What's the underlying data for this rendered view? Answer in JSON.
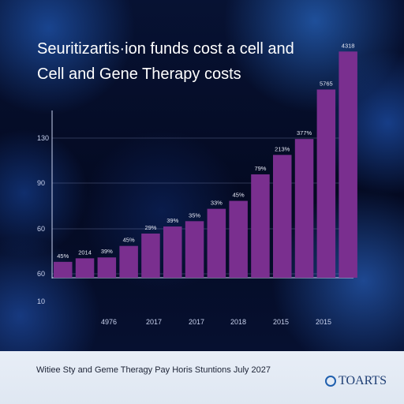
{
  "chart_data": {
    "type": "bar",
    "title_lines": [
      "Seuritizartis·ion funds cost a cell and",
      "Cell and Gene Therapy costs"
    ],
    "y_tick_labels": [
      "130",
      "90",
      "60",
      "60",
      "10"
    ],
    "x_tick_labels": [
      "4976",
      "2017",
      "2017",
      "2018",
      "2015",
      "2015"
    ],
    "values": [
      18,
      22,
      23,
      36,
      50,
      58,
      64,
      78,
      87,
      117,
      139,
      157,
      213,
      256
    ],
    "data_labels": [
      "45%",
      "2014",
      "39%",
      "45%",
      "29%",
      "39%",
      "35%",
      "33%",
      "45%",
      "79%",
      "213%",
      "377%",
      "5765",
      "4318"
    ],
    "bar_color": "#7a2f8f",
    "grid": true,
    "legend": "none"
  },
  "footer": {
    "source_text": "Witiee Sty and Geme Theragy Pay Horis Stuntions July 2027",
    "logo_text": "TOARTS"
  }
}
